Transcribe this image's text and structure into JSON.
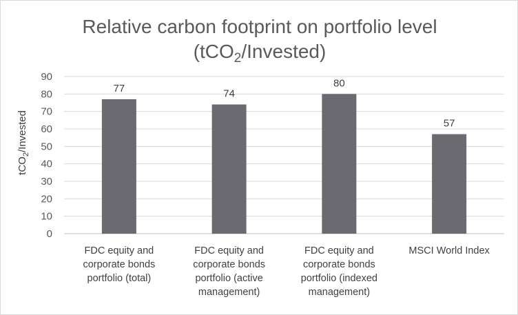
{
  "chart_data": {
    "type": "bar",
    "title": "Relative carbon footprint on portfolio level",
    "subtitle_parts": [
      "(tCO",
      "2",
      "/Invested)"
    ],
    "ylabel_parts": [
      "tCO",
      "2",
      "/Invested"
    ],
    "categories": [
      [
        "FDC equity and",
        "corporate bonds",
        "portfolio (total)"
      ],
      [
        "FDC equity and",
        "corporate bonds",
        "portfolio (active",
        "management)"
      ],
      [
        "FDC equity and",
        "corporate bonds",
        "portfolio (indexed",
        "management)"
      ],
      [
        "MSCI World Index"
      ]
    ],
    "values": [
      77,
      74,
      80,
      57
    ],
    "ylim": [
      0,
      90
    ],
    "yticks": [
      0,
      10,
      20,
      30,
      40,
      50,
      60,
      70,
      80,
      90
    ],
    "grid": true,
    "legend": "none",
    "colors": {
      "bar": "#6b6a70",
      "grid": "#d9d9d9",
      "axis": "#bfbfbf"
    }
  }
}
